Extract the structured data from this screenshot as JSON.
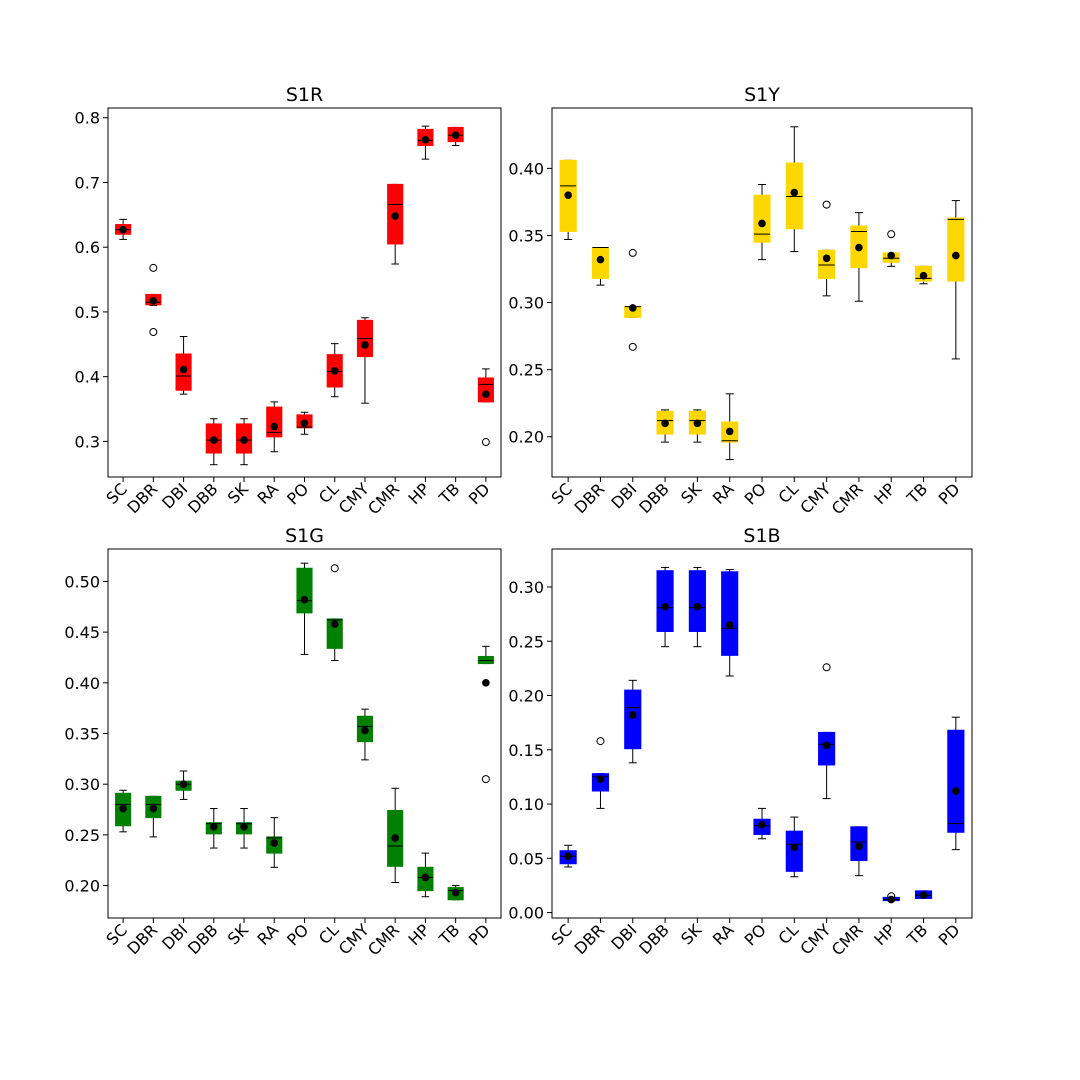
{
  "figure": {
    "background": "#ffffff"
  },
  "chart_data": [
    {
      "type": "box",
      "title": "S1R",
      "color": "#ff0000",
      "categories": [
        "SC",
        "DBR",
        "DBI",
        "DBB",
        "SK",
        "RA",
        "PO",
        "CL",
        "CMY",
        "CMR",
        "HP",
        "TB",
        "PD"
      ],
      "ylim": [
        0.245,
        0.815
      ],
      "yticks": [
        0.3,
        0.4,
        0.5,
        0.6,
        0.7,
        0.8
      ],
      "ytick_labels": [
        "0.3",
        "0.4",
        "0.5",
        "0.6",
        "0.7",
        "0.8"
      ],
      "boxes": [
        {
          "whislo": 0.612,
          "q1": 0.62,
          "med": 0.627,
          "q3": 0.635,
          "whishi": 0.643,
          "mean": 0.627,
          "fliers": []
        },
        {
          "whislo": 0.51,
          "q1": 0.511,
          "med": 0.515,
          "q3": 0.527,
          "whishi": 0.527,
          "mean": 0.517,
          "fliers": [
            0.568,
            0.469
          ]
        },
        {
          "whislo": 0.373,
          "q1": 0.379,
          "med": 0.401,
          "q3": 0.435,
          "whishi": 0.462,
          "mean": 0.411,
          "fliers": []
        },
        {
          "whislo": 0.264,
          "q1": 0.282,
          "med": 0.302,
          "q3": 0.327,
          "whishi": 0.335,
          "mean": 0.302,
          "fliers": []
        },
        {
          "whislo": 0.264,
          "q1": 0.282,
          "med": 0.302,
          "q3": 0.327,
          "whishi": 0.335,
          "mean": 0.302,
          "fliers": []
        },
        {
          "whislo": 0.284,
          "q1": 0.307,
          "med": 0.314,
          "q3": 0.353,
          "whishi": 0.361,
          "mean": 0.323,
          "fliers": []
        },
        {
          "whislo": 0.311,
          "q1": 0.321,
          "med": 0.322,
          "q3": 0.341,
          "whishi": 0.345,
          "mean": 0.328,
          "fliers": []
        },
        {
          "whislo": 0.369,
          "q1": 0.384,
          "med": 0.408,
          "q3": 0.434,
          "whishi": 0.451,
          "mean": 0.409,
          "fliers": []
        },
        {
          "whislo": 0.359,
          "q1": 0.431,
          "med": 0.459,
          "q3": 0.487,
          "whishi": 0.491,
          "mean": 0.449,
          "fliers": []
        },
        {
          "whislo": 0.574,
          "q1": 0.605,
          "med": 0.666,
          "q3": 0.697,
          "whishi": 0.697,
          "mean": 0.648,
          "fliers": []
        },
        {
          "whislo": 0.736,
          "q1": 0.757,
          "med": 0.765,
          "q3": 0.782,
          "whishi": 0.787,
          "mean": 0.766,
          "fliers": []
        },
        {
          "whislo": 0.757,
          "q1": 0.763,
          "med": 0.773,
          "q3": 0.785,
          "whishi": 0.785,
          "mean": 0.773,
          "fliers": []
        },
        {
          "whislo": 0.361,
          "q1": 0.361,
          "med": 0.388,
          "q3": 0.398,
          "whishi": 0.412,
          "mean": 0.373,
          "fliers": [
            0.299
          ]
        }
      ]
    },
    {
      "type": "box",
      "title": "S1Y",
      "color": "#ffd700",
      "categories": [
        "SC",
        "DBR",
        "DBI",
        "DBB",
        "SK",
        "RA",
        "PO",
        "CL",
        "CMY",
        "CMR",
        "HP",
        "TB",
        "PD"
      ],
      "ylim": [
        0.17,
        0.445
      ],
      "yticks": [
        0.2,
        0.25,
        0.3,
        0.35,
        0.4
      ],
      "ytick_labels": [
        "0.20",
        "0.25",
        "0.30",
        "0.35",
        "0.40"
      ],
      "boxes": [
        {
          "whislo": 0.347,
          "q1": 0.353,
          "med": 0.387,
          "q3": 0.406,
          "whishi": 0.406,
          "mean": 0.38,
          "fliers": []
        },
        {
          "whislo": 0.313,
          "q1": 0.318,
          "med": 0.341,
          "q3": 0.341,
          "whishi": 0.341,
          "mean": 0.332,
          "fliers": []
        },
        {
          "whislo": 0.289,
          "q1": 0.289,
          "med": 0.297,
          "q3": 0.297,
          "whishi": 0.297,
          "mean": 0.296,
          "fliers": [
            0.337,
            0.267
          ]
        },
        {
          "whislo": 0.196,
          "q1": 0.202,
          "med": 0.212,
          "q3": 0.219,
          "whishi": 0.22,
          "mean": 0.21,
          "fliers": []
        },
        {
          "whislo": 0.196,
          "q1": 0.202,
          "med": 0.212,
          "q3": 0.219,
          "whishi": 0.22,
          "mean": 0.21,
          "fliers": []
        },
        {
          "whislo": 0.183,
          "q1": 0.196,
          "med": 0.197,
          "q3": 0.211,
          "whishi": 0.232,
          "mean": 0.204,
          "fliers": []
        },
        {
          "whislo": 0.332,
          "q1": 0.345,
          "med": 0.351,
          "q3": 0.38,
          "whishi": 0.388,
          "mean": 0.359,
          "fliers": []
        },
        {
          "whislo": 0.338,
          "q1": 0.355,
          "med": 0.379,
          "q3": 0.404,
          "whishi": 0.431,
          "mean": 0.382,
          "fliers": []
        },
        {
          "whislo": 0.305,
          "q1": 0.318,
          "med": 0.328,
          "q3": 0.339,
          "whishi": 0.339,
          "mean": 0.333,
          "fliers": [
            0.373
          ]
        },
        {
          "whislo": 0.301,
          "q1": 0.326,
          "med": 0.353,
          "q3": 0.357,
          "whishi": 0.367,
          "mean": 0.341,
          "fliers": []
        },
        {
          "whislo": 0.327,
          "q1": 0.33,
          "med": 0.333,
          "q3": 0.337,
          "whishi": 0.337,
          "mean": 0.335,
          "fliers": [
            0.351
          ]
        },
        {
          "whislo": 0.314,
          "q1": 0.316,
          "med": 0.318,
          "q3": 0.327,
          "whishi": 0.327,
          "mean": 0.32,
          "fliers": []
        },
        {
          "whislo": 0.258,
          "q1": 0.316,
          "med": 0.362,
          "q3": 0.363,
          "whishi": 0.376,
          "mean": 0.335,
          "fliers": []
        }
      ]
    },
    {
      "type": "box",
      "title": "S1G",
      "color": "#008000",
      "categories": [
        "SC",
        "DBR",
        "DBI",
        "DBB",
        "SK",
        "RA",
        "PO",
        "CL",
        "CMY",
        "CMR",
        "HP",
        "TB",
        "PD"
      ],
      "ylim": [
        0.168,
        0.532
      ],
      "yticks": [
        0.2,
        0.25,
        0.3,
        0.35,
        0.4,
        0.45,
        0.5
      ],
      "ytick_labels": [
        "0.20",
        "0.25",
        "0.30",
        "0.35",
        "0.40",
        "0.45",
        "0.50"
      ],
      "boxes": [
        {
          "whislo": 0.253,
          "q1": 0.259,
          "med": 0.28,
          "q3": 0.291,
          "whishi": 0.294,
          "mean": 0.276,
          "fliers": []
        },
        {
          "whislo": 0.248,
          "q1": 0.267,
          "med": 0.28,
          "q3": 0.288,
          "whishi": 0.288,
          "mean": 0.276,
          "fliers": []
        },
        {
          "whislo": 0.285,
          "q1": 0.294,
          "med": 0.3,
          "q3": 0.303,
          "whishi": 0.313,
          "mean": 0.3,
          "fliers": []
        },
        {
          "whislo": 0.237,
          "q1": 0.251,
          "med": 0.261,
          "q3": 0.262,
          "whishi": 0.276,
          "mean": 0.258,
          "fliers": []
        },
        {
          "whislo": 0.237,
          "q1": 0.251,
          "med": 0.261,
          "q3": 0.262,
          "whishi": 0.276,
          "mean": 0.258,
          "fliers": []
        },
        {
          "whislo": 0.218,
          "q1": 0.232,
          "med": 0.247,
          "q3": 0.248,
          "whishi": 0.267,
          "mean": 0.242,
          "fliers": []
        },
        {
          "whislo": 0.428,
          "q1": 0.469,
          "med": 0.481,
          "q3": 0.513,
          "whishi": 0.518,
          "mean": 0.482,
          "fliers": []
        },
        {
          "whislo": 0.422,
          "q1": 0.434,
          "med": 0.462,
          "q3": 0.463,
          "whishi": 0.463,
          "mean": 0.458,
          "fliers": [
            0.513
          ]
        },
        {
          "whislo": 0.324,
          "q1": 0.342,
          "med": 0.357,
          "q3": 0.367,
          "whishi": 0.374,
          "mean": 0.353,
          "fliers": []
        },
        {
          "whislo": 0.203,
          "q1": 0.219,
          "med": 0.239,
          "q3": 0.274,
          "whishi": 0.296,
          "mean": 0.247,
          "fliers": []
        },
        {
          "whislo": 0.189,
          "q1": 0.195,
          "med": 0.208,
          "q3": 0.218,
          "whishi": 0.232,
          "mean": 0.208,
          "fliers": []
        },
        {
          "whislo": 0.186,
          "q1": 0.186,
          "med": 0.195,
          "q3": 0.198,
          "whishi": 0.2,
          "mean": 0.193,
          "fliers": []
        },
        {
          "whislo": 0.419,
          "q1": 0.419,
          "med": 0.422,
          "q3": 0.426,
          "whishi": 0.436,
          "mean": 0.4,
          "fliers": [
            0.305
          ]
        }
      ]
    },
    {
      "type": "box",
      "title": "S1B",
      "color": "#0000ff",
      "categories": [
        "SC",
        "DBR",
        "DBI",
        "DBB",
        "SK",
        "RA",
        "PO",
        "CL",
        "CMY",
        "CMR",
        "HP",
        "TB",
        "PD"
      ],
      "ylim": [
        -0.005,
        0.335
      ],
      "yticks": [
        0.0,
        0.05,
        0.1,
        0.15,
        0.2,
        0.25,
        0.3
      ],
      "ytick_labels": [
        "0.00",
        "0.05",
        "0.10",
        "0.15",
        "0.20",
        "0.25",
        "0.30"
      ],
      "boxes": [
        {
          "whislo": 0.042,
          "q1": 0.045,
          "med": 0.052,
          "q3": 0.057,
          "whishi": 0.062,
          "mean": 0.052,
          "fliers": []
        },
        {
          "whislo": 0.096,
          "q1": 0.112,
          "med": 0.125,
          "q3": 0.128,
          "whishi": 0.128,
          "mean": 0.123,
          "fliers": [
            0.158
          ]
        },
        {
          "whislo": 0.138,
          "q1": 0.151,
          "med": 0.189,
          "q3": 0.205,
          "whishi": 0.214,
          "mean": 0.182,
          "fliers": []
        },
        {
          "whislo": 0.245,
          "q1": 0.259,
          "med": 0.281,
          "q3": 0.315,
          "whishi": 0.318,
          "mean": 0.282,
          "fliers": []
        },
        {
          "whislo": 0.245,
          "q1": 0.259,
          "med": 0.281,
          "q3": 0.315,
          "whishi": 0.318,
          "mean": 0.282,
          "fliers": []
        },
        {
          "whislo": 0.218,
          "q1": 0.237,
          "med": 0.262,
          "q3": 0.314,
          "whishi": 0.316,
          "mean": 0.265,
          "fliers": []
        },
        {
          "whislo": 0.068,
          "q1": 0.072,
          "med": 0.08,
          "q3": 0.086,
          "whishi": 0.096,
          "mean": 0.081,
          "fliers": []
        },
        {
          "whislo": 0.033,
          "q1": 0.038,
          "med": 0.063,
          "q3": 0.075,
          "whishi": 0.088,
          "mean": 0.06,
          "fliers": []
        },
        {
          "whislo": 0.105,
          "q1": 0.136,
          "med": 0.155,
          "q3": 0.166,
          "whishi": 0.166,
          "mean": 0.154,
          "fliers": [
            0.226
          ]
        },
        {
          "whislo": 0.034,
          "q1": 0.048,
          "med": 0.065,
          "q3": 0.079,
          "whishi": 0.079,
          "mean": 0.061,
          "fliers": []
        },
        {
          "whislo": 0.011,
          "q1": 0.011,
          "med": 0.012,
          "q3": 0.014,
          "whishi": 0.014,
          "mean": 0.012,
          "fliers": [
            0.015
          ]
        },
        {
          "whislo": 0.013,
          "q1": 0.013,
          "med": 0.016,
          "q3": 0.02,
          "whishi": 0.02,
          "mean": 0.016,
          "fliers": []
        },
        {
          "whislo": 0.058,
          "q1": 0.074,
          "med": 0.082,
          "q3": 0.168,
          "whishi": 0.18,
          "mean": 0.112,
          "fliers": []
        }
      ]
    }
  ]
}
